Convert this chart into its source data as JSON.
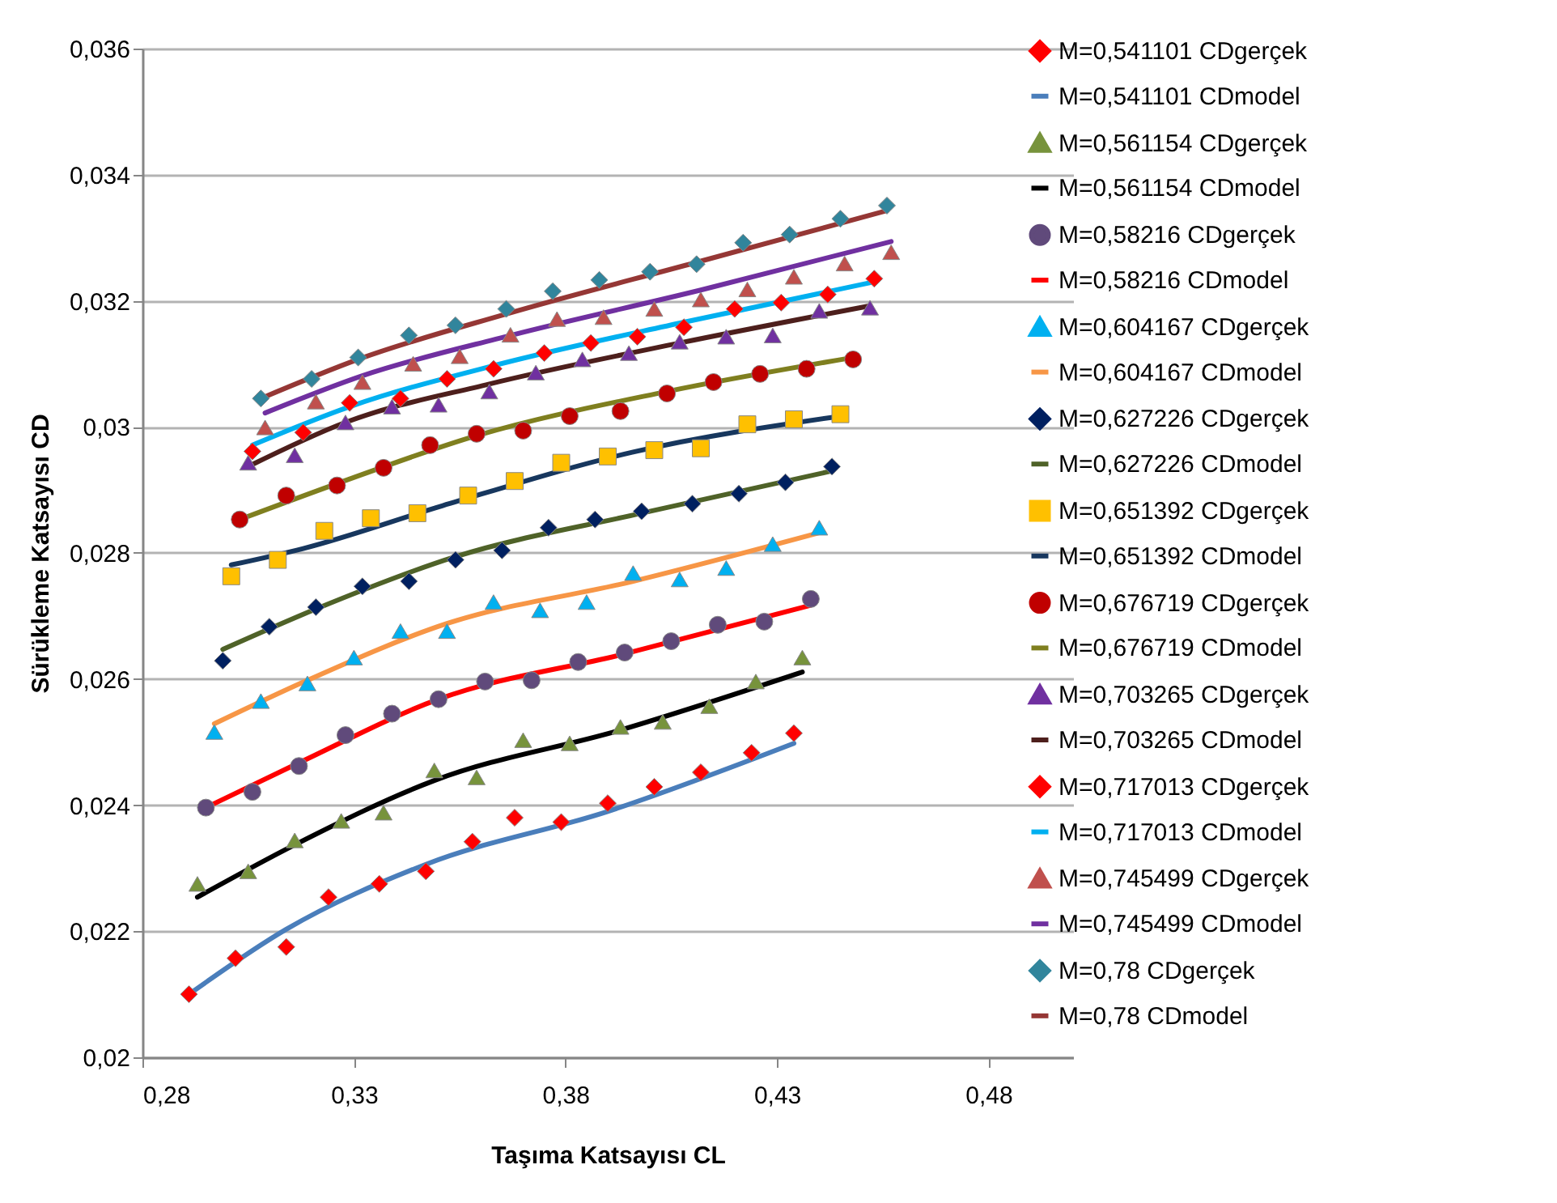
{
  "chart_data": {
    "type": "scatter",
    "xlabel": "Taşıma Katsayısı CL",
    "ylabel": "Sürükleme Katsayısı CD",
    "xlim": [
      0.28,
      0.5
    ],
    "xticks": [
      {
        "value": 0.28,
        "label": "0,28"
      },
      {
        "value": 0.33,
        "label": "0,33"
      },
      {
        "value": 0.38,
        "label": "0,38"
      },
      {
        "value": 0.43,
        "label": "0,43"
      },
      {
        "value": 0.48,
        "label": "0,48"
      }
    ],
    "ylim": [
      0.02,
      0.036
    ],
    "yticks": [
      {
        "value": 0.02,
        "label": "0,02"
      },
      {
        "value": 0.022,
        "label": "0,022"
      },
      {
        "value": 0.024,
        "label": "0,024"
      },
      {
        "value": 0.026,
        "label": "0,026"
      },
      {
        "value": 0.028,
        "label": "0,028"
      },
      {
        "value": 0.03,
        "label": "0,03"
      },
      {
        "value": 0.032,
        "label": "0,032"
      },
      {
        "value": 0.034,
        "label": "0,034"
      },
      {
        "value": 0.036,
        "label": "0,036"
      }
    ],
    "grid": "y",
    "legend": "right",
    "series": [
      {
        "name": "M=0,541101 CDgerçek",
        "type": "scatter",
        "marker": "diamond",
        "color": "#ff0000",
        "x": [
          0.291,
          0.302,
          0.314,
          0.324,
          0.336,
          0.347,
          0.358,
          0.368,
          0.379,
          0.39,
          0.401,
          0.412,
          0.424,
          0.434
        ],
        "values": [
          0.021,
          0.02157,
          0.02175,
          0.02254,
          0.02275,
          0.02295,
          0.02342,
          0.0238,
          0.02373,
          0.02403,
          0.02429,
          0.02452,
          0.02483,
          0.02514
        ]
      },
      {
        "name": "M=0,541101 CDmodel",
        "type": "line",
        "marker": "none",
        "color": "#4a7ebb",
        "x": [
          0.291,
          0.314,
          0.347,
          0.39,
          0.434
        ],
        "values": [
          0.021,
          0.02203,
          0.02306,
          0.0239,
          0.02498
        ]
      },
      {
        "name": "M=0,561154 CDgerçek",
        "type": "scatter",
        "marker": "triangle",
        "color": "#77933c",
        "x": [
          0.293,
          0.305,
          0.316,
          0.327,
          0.337,
          0.349,
          0.359,
          0.37,
          0.381,
          0.393,
          0.403,
          0.414,
          0.425,
          0.436
        ],
        "values": [
          0.02275,
          0.02295,
          0.02344,
          0.02375,
          0.02388,
          0.02455,
          0.02444,
          0.02503,
          0.02498,
          0.02524,
          0.02532,
          0.02557,
          0.02596,
          0.02634
        ]
      },
      {
        "name": "M=0,561154 CDmodel",
        "type": "line",
        "marker": "none",
        "color": "#000000",
        "x": [
          0.293,
          0.316,
          0.349,
          0.393,
          0.436
        ],
        "values": [
          0.02254,
          0.02337,
          0.02439,
          0.02519,
          0.02611
        ]
      },
      {
        "name": "M=0,58216 CDgerçek",
        "type": "scatter",
        "marker": "circle",
        "color": "#604a7b",
        "x": [
          0.295,
          0.306,
          0.317,
          0.328,
          0.339,
          0.35,
          0.361,
          0.372,
          0.383,
          0.394,
          0.405,
          0.416,
          0.427,
          0.438
        ],
        "values": [
          0.02396,
          0.02421,
          0.02462,
          0.02511,
          0.02545,
          0.02568,
          0.02596,
          0.02598,
          0.02627,
          0.02642,
          0.0266,
          0.02686,
          0.02691,
          0.02727
        ]
      },
      {
        "name": "M=0,58216 CDmodel",
        "type": "line",
        "marker": "none",
        "color": "#ff0000",
        "x": [
          0.295,
          0.317,
          0.35,
          0.394,
          0.438
        ],
        "values": [
          0.02396,
          0.02467,
          0.02568,
          0.0264,
          0.02717
        ]
      },
      {
        "name": "M=0,604167 CDgerçek",
        "type": "scatter",
        "marker": "triangle",
        "color": "#00b0f0",
        "x": [
          0.297,
          0.308,
          0.319,
          0.33,
          0.341,
          0.352,
          0.363,
          0.374,
          0.385,
          0.396,
          0.407,
          0.418,
          0.429,
          0.44
        ],
        "values": [
          0.02516,
          0.02565,
          0.02593,
          0.02634,
          0.02676,
          0.02676,
          0.02722,
          0.02709,
          0.02722,
          0.02768,
          0.02758,
          0.02776,
          0.02814,
          0.0284
        ]
      },
      {
        "name": "M=0,604167 CDmodel",
        "type": "line",
        "marker": "none",
        "color": "#f79646",
        "x": [
          0.297,
          0.319,
          0.352,
          0.396,
          0.44
        ],
        "values": [
          0.02529,
          0.02598,
          0.02688,
          0.02755,
          0.02832
        ]
      },
      {
        "name": "M=0,627226 CDgerçek",
        "type": "scatter",
        "marker": "diamond",
        "color": "#002060",
        "x": [
          0.299,
          0.31,
          0.321,
          0.332,
          0.343,
          0.354,
          0.365,
          0.376,
          0.387,
          0.398,
          0.41,
          0.421,
          0.432,
          0.443
        ],
        "values": [
          0.02629,
          0.02683,
          0.02714,
          0.02747,
          0.02755,
          0.02789,
          0.02804,
          0.0284,
          0.02853,
          0.02866,
          0.02878,
          0.02894,
          0.02912,
          0.02937
        ]
      },
      {
        "name": "M=0,627226 CDmodel",
        "type": "line",
        "marker": "none",
        "color": "#4f6228",
        "x": [
          0.299,
          0.321,
          0.354,
          0.398,
          0.443
        ],
        "values": [
          0.02647,
          0.02711,
          0.02794,
          0.02863,
          0.0293
        ]
      },
      {
        "name": "M=0,651392 CDgerçek",
        "type": "scatter",
        "marker": "square",
        "color": "#ffc000",
        "x": [
          0.301,
          0.312,
          0.323,
          0.334,
          0.345,
          0.357,
          0.368,
          0.379,
          0.39,
          0.401,
          0.412,
          0.423,
          0.434,
          0.445
        ],
        "values": [
          0.02763,
          0.02789,
          0.02835,
          0.02855,
          0.02863,
          0.02891,
          0.02914,
          0.02943,
          0.02953,
          0.02963,
          0.02966,
          0.03004,
          0.03012,
          0.0302
        ]
      },
      {
        "name": "M=0,651392 CDmodel",
        "type": "line",
        "marker": "none",
        "color": "#17375e",
        "x": [
          0.301,
          0.318,
          0.351,
          0.396,
          0.445
        ],
        "values": [
          0.02781,
          0.02807,
          0.02875,
          0.0296,
          0.03017
        ]
      },
      {
        "name": "M=0,676719 CDgerçek",
        "type": "scatter",
        "marker": "circle",
        "color": "#c00000",
        "x": [
          0.303,
          0.314,
          0.326,
          0.337,
          0.348,
          0.359,
          0.37,
          0.381,
          0.393,
          0.404,
          0.415,
          0.426,
          0.437,
          0.448
        ],
        "values": [
          0.02853,
          0.02891,
          0.02907,
          0.02935,
          0.02971,
          0.02989,
          0.02994,
          0.03017,
          0.03025,
          0.03053,
          0.03071,
          0.03084,
          0.03092,
          0.03107
        ]
      },
      {
        "name": "M=0,676719 CDmodel",
        "type": "line",
        "marker": "none",
        "color": "#7f7f1f",
        "x": [
          0.303,
          0.326,
          0.359,
          0.404,
          0.448
        ],
        "values": [
          0.02853,
          0.0291,
          0.02986,
          0.03056,
          0.0311
        ]
      },
      {
        "name": "M=0,703265 CDgerçek",
        "type": "scatter",
        "marker": "triangle",
        "color": "#7030a0",
        "x": [
          0.305,
          0.316,
          0.328,
          0.339,
          0.35,
          0.362,
          0.373,
          0.384,
          0.395,
          0.407,
          0.418,
          0.429,
          0.44,
          0.452
        ],
        "values": [
          0.02943,
          0.02955,
          0.03007,
          0.03032,
          0.03035,
          0.03056,
          0.03086,
          0.03107,
          0.03117,
          0.03135,
          0.03143,
          0.03145,
          0.03184,
          0.03189
        ]
      },
      {
        "name": "M=0,703265 CDmodel",
        "type": "line",
        "marker": "none",
        "color": "#4d1f1c",
        "x": [
          0.305,
          0.328,
          0.362,
          0.407,
          0.452
        ],
        "values": [
          0.02937,
          0.03007,
          0.03068,
          0.03133,
          0.03192
        ]
      },
      {
        "name": "M=0,717013 CDgerçek",
        "type": "scatter",
        "marker": "diamond",
        "color": "#ff0000",
        "x": [
          0.306,
          0.318,
          0.329,
          0.341,
          0.352,
          0.363,
          0.375,
          0.386,
          0.397,
          0.408,
          0.42,
          0.431,
          0.442,
          0.453
        ],
        "values": [
          0.02961,
          0.02991,
          0.03038,
          0.03045,
          0.03076,
          0.03092,
          0.03117,
          0.03133,
          0.03143,
          0.03158,
          0.03187,
          0.03197,
          0.0321,
          0.03235
        ]
      },
      {
        "name": "M=0,717013 CDmodel",
        "type": "line",
        "marker": "none",
        "color": "#00b0f0",
        "x": [
          0.306,
          0.329,
          0.363,
          0.408,
          0.453
        ],
        "values": [
          0.02971,
          0.03032,
          0.03097,
          0.03166,
          0.0323
        ]
      },
      {
        "name": "M=0,745499 CDgerçek",
        "type": "scatter",
        "marker": "triangle",
        "color": "#c0504d",
        "x": [
          0.309,
          0.321,
          0.332,
          0.344,
          0.355,
          0.367,
          0.378,
          0.389,
          0.401,
          0.412,
          0.423,
          0.434,
          0.446,
          0.457
        ],
        "values": [
          0.02999,
          0.0304,
          0.03071,
          0.031,
          0.03112,
          0.03146,
          0.03171,
          0.03174,
          0.03187,
          0.03202,
          0.03218,
          0.03238,
          0.03259,
          0.03277
        ]
      },
      {
        "name": "M=0,745499 CDmodel",
        "type": "line",
        "marker": "none",
        "color": "#7030a0",
        "x": [
          0.309,
          0.332,
          0.367,
          0.412,
          0.457
        ],
        "values": [
          0.03022,
          0.03081,
          0.03145,
          0.03217,
          0.03294
        ]
      },
      {
        "name": "M=0,78 CDgerçek",
        "type": "scatter",
        "marker": "diamond",
        "color": "#31859c",
        "x": [
          0.308,
          0.32,
          0.331,
          0.343,
          0.354,
          0.366,
          0.377,
          0.388,
          0.4,
          0.411,
          0.422,
          0.433,
          0.445,
          0.456
        ],
        "values": [
          0.03045,
          0.03076,
          0.0311,
          0.03145,
          0.03161,
          0.03187,
          0.03215,
          0.03233,
          0.03246,
          0.03258,
          0.03292,
          0.03305,
          0.0333,
          0.03351
        ]
      },
      {
        "name": "M=0,78 CDmodel",
        "type": "line",
        "marker": "none",
        "color": "#953735",
        "x": [
          0.308,
          0.331,
          0.366,
          0.411,
          0.456
        ],
        "values": [
          0.03045,
          0.03107,
          0.03179,
          0.03261,
          0.03343
        ]
      }
    ]
  }
}
